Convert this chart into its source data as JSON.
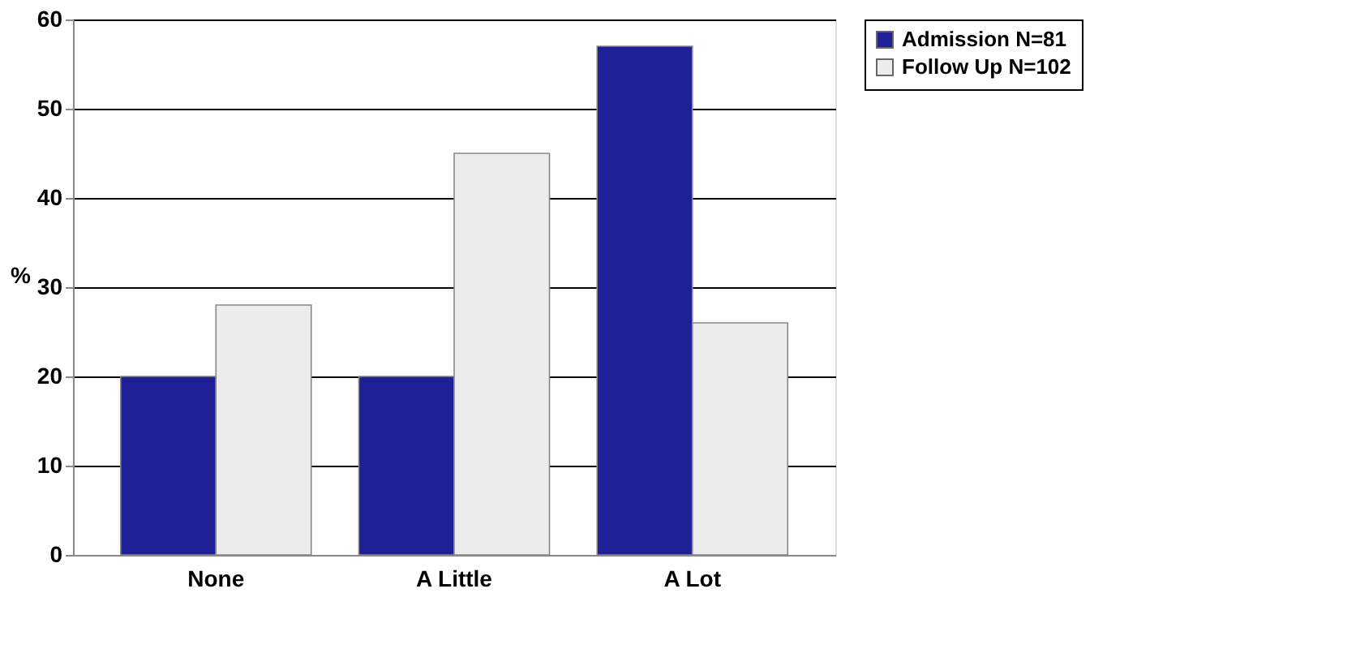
{
  "chart_data": {
    "type": "bar",
    "ylabel": "%",
    "categories": [
      "None",
      "A Little",
      "A Lot"
    ],
    "series": [
      {
        "name": "Admission N=81",
        "color": "#1f1f96",
        "values": [
          20,
          20,
          57
        ]
      },
      {
        "name": "Follow Up N=102",
        "color": "#ececec",
        "values": [
          28,
          45,
          26
        ]
      }
    ],
    "ylim": [
      0,
      60
    ],
    "yticks": [
      0,
      10,
      20,
      30,
      40,
      50,
      60
    ],
    "grid": "y",
    "legend": "right"
  }
}
